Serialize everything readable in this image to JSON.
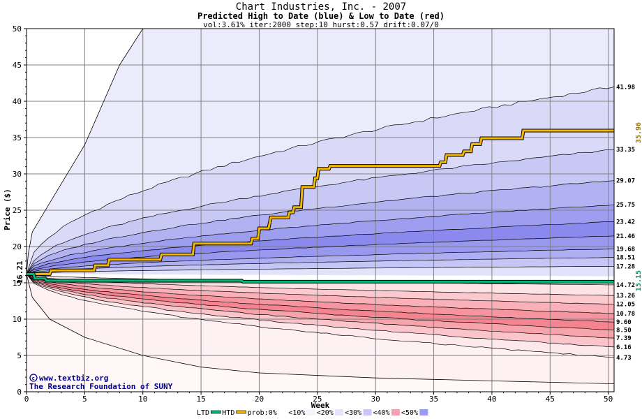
{
  "chart_data": {
    "type": "area",
    "title": "Chart Industries, Inc. - 2007",
    "subtitle": "Predicted High to Date (blue) &  Low to Date (red)",
    "params": "vol:3.61% iter:2000 step:10 hurst:0.57 drift:0.07/0",
    "xlabel": "Week",
    "ylabel": "Price ($)",
    "xlim": [
      0,
      50.5
    ],
    "ylim": [
      0,
      50
    ],
    "xticks": [
      0,
      5,
      10,
      15,
      20,
      25,
      30,
      35,
      40,
      45,
      50
    ],
    "yticks": [
      0,
      5,
      10,
      15,
      20,
      25,
      30,
      35,
      40,
      45,
      50
    ],
    "grid": true,
    "start_price": 16.21,
    "start_label": "16.21",
    "high_side_labels": [
      "41.98",
      "33.35",
      "29.07",
      "25.75",
      "23.42",
      "21.46",
      "19.68",
      "18.51",
      "17.28"
    ],
    "high_end_values": [
      41.98,
      33.35,
      29.07,
      25.75,
      23.42,
      21.46,
      19.68,
      18.51,
      17.28
    ],
    "low_side_labels": [
      "14.72",
      "13.26",
      "12.05",
      "10.78",
      "9.60",
      "8.50",
      "7.39",
      "6.16",
      "4.73"
    ],
    "low_end_values": [
      14.72,
      13.26,
      12.05,
      10.78,
      9.6,
      8.5,
      7.39,
      6.16,
      4.73
    ],
    "htd_label": "35.96",
    "ltd_label": "15.15",
    "htd_series": {
      "name": "HTD",
      "x": [
        0,
        2,
        2.1,
        5.8,
        5.9,
        7,
        7.1,
        11.5,
        11.6,
        14.3,
        14.4,
        19.3,
        19.4,
        19.9,
        20,
        20.8,
        21,
        22.5,
        22.6,
        22.9,
        23,
        23.6,
        23.7,
        24.7,
        24.8,
        25,
        25.1,
        26,
        26.1,
        35.5,
        35.6,
        36,
        36.1,
        37.5,
        37.6,
        38.2,
        38.3,
        39,
        39.1,
        42.6,
        42.7,
        50.5
      ],
      "values": [
        16.21,
        16.21,
        16.7,
        16.7,
        17.4,
        17.4,
        18.2,
        18.2,
        18.9,
        18.9,
        20.4,
        20.4,
        21.1,
        21.1,
        22.5,
        22.5,
        24,
        24,
        24.7,
        24.7,
        25.4,
        25.4,
        28.2,
        28.2,
        29.4,
        29.4,
        30.7,
        30.7,
        31.1,
        31.1,
        31.6,
        31.6,
        32.6,
        32.6,
        33.1,
        33.1,
        34.1,
        34.1,
        34.9,
        34.9,
        35.96,
        35.96
      ]
    },
    "ltd_series": {
      "name": "LTD",
      "x": [
        0,
        0.6,
        0.7,
        1.6,
        1.7,
        18.5,
        18.6,
        50.5
      ],
      "values": [
        16.21,
        16.21,
        15.6,
        15.6,
        15.3,
        15.3,
        15.15,
        15.15
      ]
    },
    "legend": {
      "placement": "bottom",
      "items": [
        "LTD",
        "HTD",
        "prob:0%",
        "<10%",
        "<20%",
        "<30%",
        "<40%",
        "<50%"
      ],
      "ltd_color": "#00b87a",
      "htd_color": "#f5b800",
      "swatch_colors": [
        "#ffffff",
        "#f4f4ff",
        "#e4e4fb",
        "#c8c8f8",
        "#f3a0b4",
        "#9a9af0"
      ]
    }
  },
  "credit": {
    "line1": "www.textbiz.org",
    "line2": "The Research Foundation of SUNY"
  }
}
